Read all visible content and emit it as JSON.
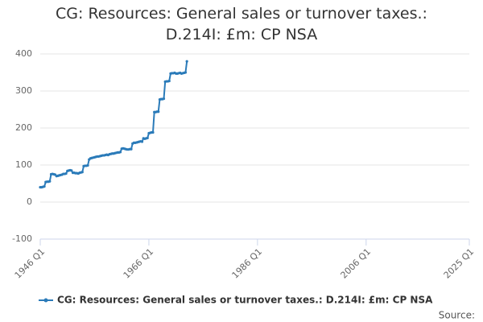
{
  "chart_data": {
    "type": "line",
    "title": "CG: Resources: General sales or turnover taxes.: D.214I: £m: CP NSA",
    "source": "Source:",
    "x": [
      "1946 Q1",
      "1946 Q2",
      "1946 Q3",
      "1946 Q4",
      "1947 Q1",
      "1947 Q2",
      "1947 Q3",
      "1947 Q4",
      "1948 Q1",
      "1948 Q2",
      "1948 Q3",
      "1948 Q4",
      "1949 Q1",
      "1949 Q2",
      "1949 Q3",
      "1949 Q4",
      "1950 Q1",
      "1950 Q2",
      "1950 Q3",
      "1950 Q4",
      "1951 Q1",
      "1951 Q2",
      "1951 Q3",
      "1951 Q4",
      "1952 Q1",
      "1952 Q2",
      "1952 Q3",
      "1952 Q4",
      "1953 Q1",
      "1953 Q2",
      "1953 Q3",
      "1953 Q4",
      "1954 Q1",
      "1954 Q2",
      "1954 Q3",
      "1954 Q4",
      "1955 Q1",
      "1955 Q2",
      "1955 Q3",
      "1955 Q4",
      "1956 Q1",
      "1956 Q2",
      "1956 Q3",
      "1956 Q4",
      "1957 Q1",
      "1957 Q2",
      "1957 Q3",
      "1957 Q4",
      "1958 Q1",
      "1958 Q2",
      "1958 Q3",
      "1958 Q4",
      "1959 Q1",
      "1959 Q2",
      "1959 Q3",
      "1959 Q4",
      "1960 Q1",
      "1960 Q2",
      "1960 Q3",
      "1960 Q4",
      "1961 Q1",
      "1961 Q2",
      "1961 Q3",
      "1961 Q4",
      "1962 Q1",
      "1962 Q2",
      "1962 Q3",
      "1962 Q4",
      "1963 Q1",
      "1963 Q2",
      "1963 Q3",
      "1963 Q4",
      "1964 Q1",
      "1964 Q2",
      "1964 Q3",
      "1964 Q4",
      "1965 Q1",
      "1965 Q2",
      "1965 Q3",
      "1965 Q4",
      "1966 Q1",
      "1966 Q2",
      "1966 Q3",
      "1966 Q4",
      "1967 Q1",
      "1967 Q2",
      "1967 Q3",
      "1967 Q4",
      "1968 Q1",
      "1968 Q2",
      "1968 Q3",
      "1968 Q4",
      "1969 Q1",
      "1969 Q2",
      "1969 Q3",
      "1969 Q4",
      "1970 Q1",
      "1970 Q2",
      "1970 Q3",
      "1970 Q4",
      "1971 Q1",
      "1971 Q2",
      "1971 Q3",
      "1971 Q4",
      "1972 Q1",
      "1972 Q2",
      "1972 Q3",
      "1972 Q4",
      "1973 Q1"
    ],
    "series": [
      {
        "name": "CG: Resources: General sales or turnover taxes.: D.214I: £m: CP NSA",
        "color": "#2b7bb9",
        "values": [
          40,
          40,
          41,
          42,
          54,
          55,
          55,
          56,
          75,
          76,
          75,
          74,
          70,
          71,
          72,
          73,
          74,
          76,
          76,
          77,
          84,
          85,
          86,
          85,
          79,
          79,
          78,
          78,
          77,
          79,
          80,
          81,
          97,
          98,
          98,
          99,
          115,
          118,
          119,
          120,
          121,
          122,
          123,
          123,
          124,
          125,
          126,
          126,
          127,
          128,
          127,
          129,
          130,
          131,
          131,
          132,
          133,
          134,
          134,
          135,
          144,
          145,
          144,
          143,
          142,
          142,
          143,
          143,
          158,
          160,
          160,
          161,
          162,
          163,
          164,
          163,
          172,
          171,
          172,
          173,
          186,
          187,
          188,
          188,
          243,
          243,
          244,
          244,
          277,
          278,
          278,
          279,
          325,
          326,
          326,
          327,
          347,
          348,
          348,
          349,
          347,
          347,
          348,
          349,
          347,
          348,
          349,
          350,
          380
        ]
      }
    ],
    "xlim": [
      "1946 Q1",
      "2025 Q1"
    ],
    "xticks": [
      "1946 Q1",
      "1966 Q1",
      "1986 Q1",
      "2006 Q1",
      "2025 Q1"
    ],
    "ylim": [
      -100,
      400
    ],
    "yticks": [
      -100,
      0,
      100,
      200,
      300,
      400
    ],
    "grid": true
  }
}
